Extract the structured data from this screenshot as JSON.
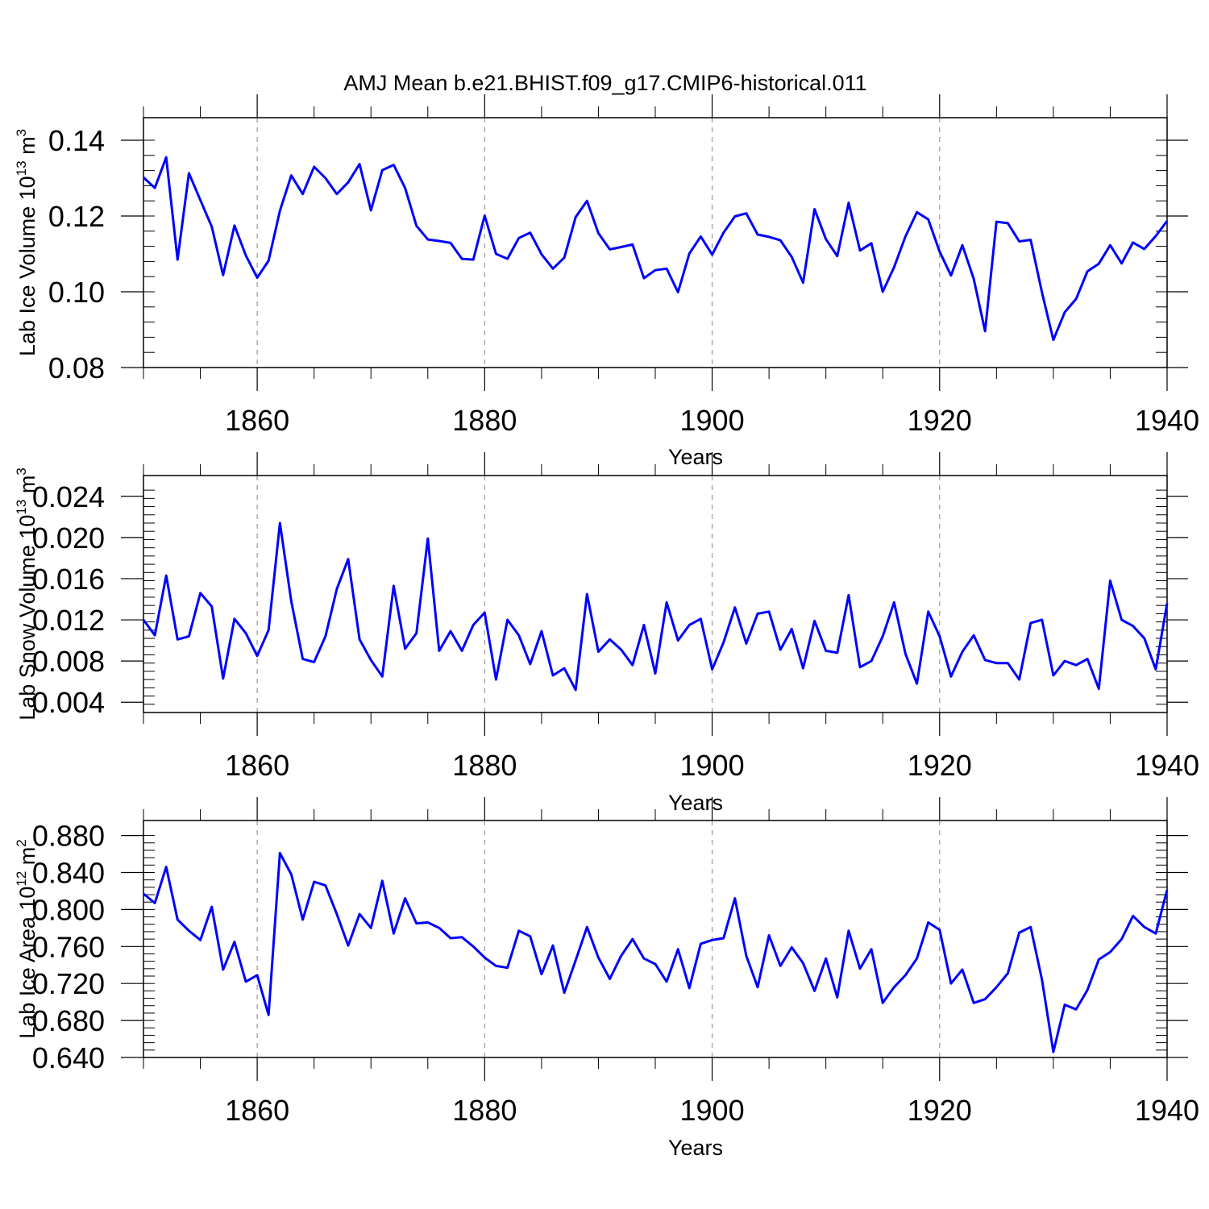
{
  "title": "AMJ Mean b.e21.BHIST.f09_g17.CMIP6-historical.011",
  "line_color": "#0000ff",
  "grid_color": "#999999",
  "chart_data": [
    {
      "type": "line",
      "xlabel": "Years",
      "ylabel_main": "Lab Ice Volume 10",
      "ylabel_exp": "13",
      "ylabel_unit": " m",
      "ylabel_unit_exp": "3",
      "xlim": [
        1850,
        1940
      ],
      "ylim": [
        0.08,
        0.14
      ],
      "xticks": [
        1860,
        1880,
        1900,
        1920,
        1940
      ],
      "xtick_labels": [
        "1860",
        "1880",
        "1900",
        "1920",
        "1940"
      ],
      "yticks": [
        0.08,
        0.1,
        0.12,
        0.14
      ],
      "ytick_labels": [
        "0.08",
        "0.10",
        "0.12",
        "0.14"
      ],
      "grid": "x-dashed",
      "x_start": 1850,
      "values": [
        0.1302,
        0.1274,
        0.1355,
        0.1085,
        0.1313,
        0.1242,
        0.1172,
        0.1044,
        0.1175,
        0.1096,
        0.1037,
        0.1082,
        0.1214,
        0.1307,
        0.1258,
        0.133,
        0.13,
        0.1258,
        0.1289,
        0.1337,
        0.1215,
        0.1321,
        0.1335,
        0.1274,
        0.1174,
        0.1138,
        0.1134,
        0.1129,
        0.1087,
        0.1085,
        0.1201,
        0.11,
        0.1087,
        0.1142,
        0.1156,
        0.1099,
        0.1061,
        0.109,
        0.1197,
        0.124,
        0.1155,
        0.1112,
        0.1118,
        0.1125,
        0.1036,
        0.1057,
        0.1061,
        0.0999,
        0.1101,
        0.1146,
        0.1098,
        0.1156,
        0.1199,
        0.1207,
        0.1151,
        0.1145,
        0.1136,
        0.1092,
        0.1024,
        0.1218,
        0.1139,
        0.1094,
        0.1235,
        0.1109,
        0.1128,
        0.1,
        0.1065,
        0.1146,
        0.121,
        0.1191,
        0.1106,
        0.1043,
        0.1123,
        0.1034,
        0.0896,
        0.1185,
        0.1181,
        0.1133,
        0.1137,
        0.0998,
        0.0873,
        0.0946,
        0.0981,
        0.1054,
        0.1074,
        0.1123,
        0.1075,
        0.113,
        0.1113,
        0.1147,
        0.1187
      ]
    },
    {
      "type": "line",
      "xlabel": "Years",
      "ylabel_main": "Lab Snow Volume 10",
      "ylabel_exp": "13",
      "ylabel_unit": " m",
      "ylabel_unit_exp": "3",
      "xlim": [
        1850,
        1940
      ],
      "ylim": [
        0.003,
        0.025
      ],
      "xticks": [
        1860,
        1880,
        1900,
        1920,
        1940
      ],
      "xtick_labels": [
        "1860",
        "1880",
        "1900",
        "1920",
        "1940"
      ],
      "yticks": [
        0.004,
        0.008,
        0.012,
        0.016,
        0.02,
        0.024
      ],
      "ytick_labels": [
        "0.004",
        "0.008",
        "0.012",
        "0.016",
        "0.020",
        "0.024"
      ],
      "grid": "x-dashed",
      "x_start": 1850,
      "values": [
        0.012,
        0.0105,
        0.0163,
        0.0101,
        0.0104,
        0.0146,
        0.0133,
        0.0063,
        0.0121,
        0.0107,
        0.0085,
        0.011,
        0.0214,
        0.0138,
        0.0082,
        0.0079,
        0.0104,
        0.015,
        0.0179,
        0.0101,
        0.0081,
        0.0065,
        0.0153,
        0.0092,
        0.0107,
        0.0199,
        0.009,
        0.0109,
        0.009,
        0.0115,
        0.0127,
        0.0062,
        0.012,
        0.0105,
        0.0077,
        0.0109,
        0.0066,
        0.0073,
        0.0052,
        0.0145,
        0.0089,
        0.0101,
        0.0091,
        0.0076,
        0.0115,
        0.0068,
        0.0137,
        0.01,
        0.0115,
        0.0121,
        0.0072,
        0.0098,
        0.0132,
        0.0097,
        0.0126,
        0.0128,
        0.0091,
        0.0111,
        0.0073,
        0.0119,
        0.009,
        0.0088,
        0.0144,
        0.0074,
        0.008,
        0.0104,
        0.0137,
        0.0087,
        0.0058,
        0.0128,
        0.0104,
        0.0065,
        0.0089,
        0.0105,
        0.0081,
        0.0078,
        0.0078,
        0.0062,
        0.0117,
        0.012,
        0.0066,
        0.008,
        0.0076,
        0.0082,
        0.0053,
        0.0158,
        0.012,
        0.0114,
        0.0102,
        0.0072,
        0.0136
      ]
    },
    {
      "type": "line",
      "xlabel": "Years",
      "ylabel_main": "Lab Ice Area 10",
      "ylabel_exp": "12",
      "ylabel_unit": " m",
      "ylabel_unit_exp": "2",
      "xlim": [
        1850,
        1940
      ],
      "ylim": [
        0.64,
        0.884
      ],
      "xticks": [
        1860,
        1880,
        1900,
        1920,
        1940
      ],
      "xtick_labels": [
        "1860",
        "1880",
        "1900",
        "1920",
        "1940"
      ],
      "yticks": [
        0.64,
        0.68,
        0.72,
        0.76,
        0.8,
        0.84,
        0.88
      ],
      "ytick_labels": [
        "0.640",
        "0.680",
        "0.720",
        "0.760",
        "0.800",
        "0.840",
        "0.880"
      ],
      "grid": "x-dashed",
      "x_start": 1850,
      "values": [
        0.817,
        0.807,
        0.846,
        0.789,
        0.777,
        0.767,
        0.803,
        0.735,
        0.765,
        0.722,
        0.729,
        0.686,
        0.861,
        0.838,
        0.789,
        0.83,
        0.826,
        0.795,
        0.761,
        0.795,
        0.78,
        0.831,
        0.774,
        0.812,
        0.785,
        0.786,
        0.78,
        0.769,
        0.77,
        0.76,
        0.748,
        0.739,
        0.737,
        0.777,
        0.771,
        0.73,
        0.761,
        0.71,
        0.745,
        0.781,
        0.748,
        0.725,
        0.75,
        0.768,
        0.747,
        0.741,
        0.722,
        0.757,
        0.715,
        0.763,
        0.767,
        0.769,
        0.812,
        0.75,
        0.716,
        0.772,
        0.739,
        0.759,
        0.742,
        0.712,
        0.747,
        0.705,
        0.777,
        0.736,
        0.757,
        0.699,
        0.716,
        0.729,
        0.747,
        0.786,
        0.778,
        0.72,
        0.735,
        0.699,
        0.703,
        0.716,
        0.731,
        0.775,
        0.781,
        0.724,
        0.646,
        0.697,
        0.692,
        0.713,
        0.746,
        0.754,
        0.768,
        0.793,
        0.781,
        0.774,
        0.821
      ]
    }
  ]
}
